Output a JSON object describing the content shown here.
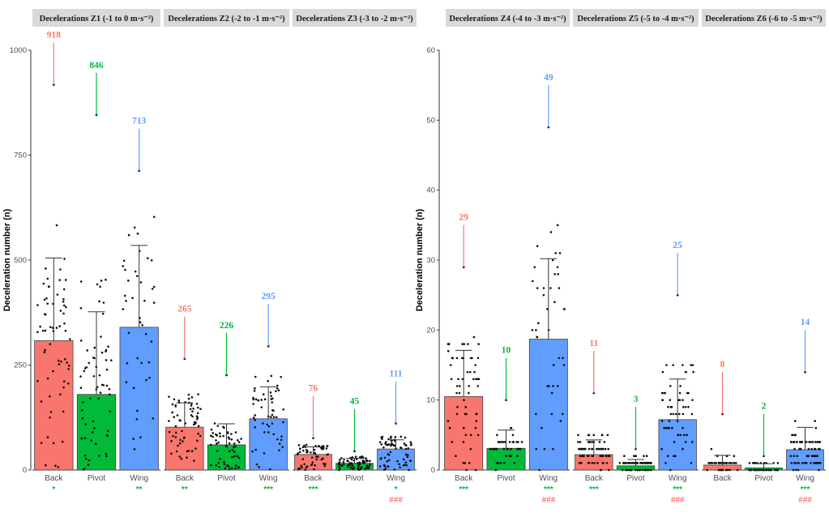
{
  "chart_data": [
    {
      "type": "bar",
      "panel": "left",
      "ylabel": "Deceleration number (n)",
      "ylim": [
        0,
        1000
      ],
      "yticks": [
        0,
        250,
        500,
        750,
        1000
      ],
      "categories": [
        "Back",
        "Pivot",
        "Wing"
      ],
      "colors": {
        "Back": "#F8766D",
        "Pivot": "#00BA38",
        "Wing": "#619CFF"
      },
      "sig_colors": {
        "star": "#00BA38",
        "hash": "#F8766D"
      },
      "facets": [
        {
          "title": "Decelerations Z1 (-1 to 0 m·s⁻²)",
          "means": [
            308,
            180,
            340
          ],
          "sd_upper": [
            505,
            377,
            535
          ],
          "max": [
            918,
            846,
            713
          ],
          "max_labels": [
            "918",
            "846",
            "713"
          ],
          "stars": [
            "*",
            "",
            "**"
          ],
          "hashes": [
            "",
            "",
            ""
          ]
        },
        {
          "title": "Decelerations Z2 (-2 to -1 m·s⁻²)",
          "means": [
            102,
            60,
            122
          ],
          "sd_upper": [
            160,
            110,
            198
          ],
          "max": [
            265,
            226,
            295
          ],
          "max_labels": [
            "265",
            "226",
            "295"
          ],
          "stars": [
            "**",
            "",
            "***"
          ],
          "hashes": [
            "",
            "",
            ""
          ]
        },
        {
          "title": "Decelerations Z3 (-3 to -2 m·s⁻²)",
          "means": [
            37,
            16,
            50
          ],
          "sd_upper": [
            55,
            28,
            72
          ],
          "max": [
            76,
            45,
            111
          ],
          "max_labels": [
            "76",
            "45",
            "111"
          ],
          "stars": [
            "***",
            "",
            "*"
          ],
          "hashes": [
            "",
            "",
            "###"
          ]
        }
      ]
    },
    {
      "type": "bar",
      "panel": "right",
      "ylabel": "Deceleration number (n)",
      "ylim": [
        0,
        60
      ],
      "yticks": [
        0,
        10,
        20,
        30,
        40,
        50,
        60
      ],
      "categories": [
        "Back",
        "Pivot",
        "Wing"
      ],
      "colors": {
        "Back": "#F8766D",
        "Pivot": "#00BA38",
        "Wing": "#619CFF"
      },
      "sig_colors": {
        "star": "#00BA38",
        "hash": "#F8766D"
      },
      "facets": [
        {
          "title": "Decelerations Z4 (-4 to -3 m·s⁻²)",
          "means": [
            10.5,
            3.1,
            18.7
          ],
          "sd_upper": [
            17.1,
            5.7,
            30.2
          ],
          "max": [
            29,
            10,
            49
          ],
          "max_labels": [
            "29",
            "10",
            "49"
          ],
          "stars": [
            "***",
            "",
            "***"
          ],
          "hashes": [
            "",
            "",
            "###"
          ]
        },
        {
          "title": "Decelerations Z5 (-5 to -4 m·s⁻²)",
          "means": [
            2.2,
            0.6,
            7.2
          ],
          "sd_upper": [
            4.3,
            1.5,
            13.0
          ],
          "max": [
            11,
            3,
            25
          ],
          "max_labels": [
            "11",
            "3",
            "25"
          ],
          "stars": [
            "***",
            "",
            "***"
          ],
          "hashes": [
            "",
            "",
            "###"
          ]
        },
        {
          "title": "Decelerations Z6 (-6 to -5 m·s⁻²)",
          "means": [
            0.7,
            0.3,
            2.9
          ],
          "sd_upper": [
            2.1,
            0.9,
            6.1
          ],
          "max": [
            8,
            2,
            14
          ],
          "max_labels": [
            "8",
            "2",
            "14"
          ],
          "stars": [
            "",
            "",
            "***"
          ],
          "hashes": [
            "",
            "",
            "###"
          ]
        }
      ]
    }
  ]
}
